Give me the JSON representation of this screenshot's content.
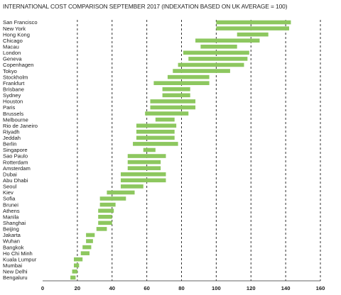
{
  "chart_data": {
    "type": "bar",
    "subtype": "floating-range-horizontal",
    "title": "INTERNATIONAL COST COMPARISON SEPTEMBER 2017 (INDEXATION BASED ON UK AVERAGE = 100)",
    "xlabel": "",
    "ylabel": "",
    "xlim": [
      0,
      160
    ],
    "xticks": [
      0,
      20,
      40,
      60,
      80,
      100,
      120,
      140,
      160
    ],
    "gridlines": "vertical-dashed",
    "bar_color": "#8dc75f",
    "categories": [
      "San Francisco",
      "New York",
      "Hong Kong",
      "Chicago",
      "Macau",
      "London",
      "Geneva",
      "Copenhagen",
      "Tokyo",
      "Stockholm",
      "Frankfurt",
      "Brisbane",
      "Sydney",
      "Houston",
      "Paris",
      "Brussels",
      "Melbourne",
      "Rio de Janeiro",
      "Riyadh",
      "Jeddah",
      "Berlin",
      "Singapore",
      "Sao Paulo",
      "Rotterdam",
      "Amsterdam",
      "Dubai",
      "Abu Dhabi",
      "Seoul",
      "Kiev",
      "Sofia",
      "Brunei",
      "Athens",
      "Manila",
      "Shanghai",
      "Beijing",
      "Jakarta",
      "Wuhan",
      "Bangkok",
      "Ho Chi Minh",
      "Kuala Lumpur",
      "Mumbai",
      "New Delhi",
      "Bengaluru"
    ],
    "series": [
      {
        "ranges": [
          [
            100,
            143
          ],
          [
            100,
            142
          ],
          [
            112,
            130
          ],
          [
            88,
            125
          ],
          [
            91,
            112
          ],
          [
            81,
            119
          ],
          [
            84,
            118
          ],
          [
            78,
            116
          ],
          [
            75,
            108
          ],
          [
            72,
            96
          ],
          [
            64,
            96
          ],
          [
            69,
            85
          ],
          [
            69,
            85
          ],
          [
            62,
            88
          ],
          [
            62,
            88
          ],
          [
            59,
            84
          ],
          [
            65,
            76
          ],
          [
            54,
            77
          ],
          [
            54,
            76
          ],
          [
            54,
            76
          ],
          [
            52,
            78
          ],
          [
            58,
            65
          ],
          [
            49,
            71
          ],
          [
            49,
            68
          ],
          [
            49,
            68
          ],
          [
            45,
            71
          ],
          [
            45,
            71
          ],
          [
            45,
            58
          ],
          [
            37,
            53
          ],
          [
            33,
            48
          ],
          [
            33,
            42
          ],
          [
            32,
            41
          ],
          [
            32,
            40
          ],
          [
            32,
            40
          ],
          [
            31,
            37
          ],
          [
            25,
            30
          ],
          [
            25,
            29
          ],
          [
            23,
            28
          ],
          [
            22,
            27
          ],
          [
            18,
            23
          ],
          [
            18,
            21
          ],
          [
            17,
            20
          ],
          [
            16,
            19
          ]
        ]
      }
    ]
  }
}
